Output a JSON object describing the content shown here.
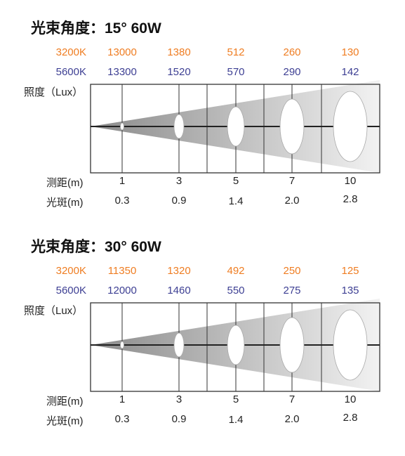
{
  "panels": [
    {
      "title": "光束角度：15°  60W",
      "row_labels": {
        "temp_a": "3200K",
        "temp_b": "5600K",
        "illuminance": "照度（Lux）",
        "distance": "测距(m)",
        "spot": "光斑(m)"
      },
      "colors": {
        "temp_a": "#ef7d22",
        "temp_b": "#3d3f93"
      },
      "columns": [
        {
          "lux_3200": "13000",
          "lux_5600": "13300",
          "distance": "1",
          "spot": "0.3"
        },
        {
          "lux_3200": "1380",
          "lux_5600": "1520",
          "distance": "3",
          "spot": "0.9"
        },
        {
          "lux_3200": "512",
          "lux_5600": "570",
          "distance": "5",
          "spot": "1.4"
        },
        {
          "lux_3200": "260",
          "lux_5600": "290",
          "distance": "7",
          "spot": "2.0"
        },
        {
          "lux_3200": "130",
          "lux_5600": "142",
          "distance": "10",
          "spot": "2.8"
        }
      ]
    },
    {
      "title": "光束角度：30°  60W",
      "row_labels": {
        "temp_a": "3200K",
        "temp_b": "5600K",
        "illuminance": "照度（Lux）",
        "distance": "测距(m)",
        "spot": "光斑(m)"
      },
      "colors": {
        "temp_a": "#ef7d22",
        "temp_b": "#3d3f93"
      },
      "columns": [
        {
          "lux_3200": "11350",
          "lux_5600": "12000",
          "distance": "1",
          "spot": "0.3"
        },
        {
          "lux_3200": "1320",
          "lux_5600": "1460",
          "distance": "3",
          "spot": "0.9"
        },
        {
          "lux_3200": "492",
          "lux_5600": "550",
          "distance": "5",
          "spot": "1.4"
        },
        {
          "lux_3200": "250",
          "lux_5600": "275",
          "distance": "7",
          "spot": "2.0"
        },
        {
          "lux_3200": "125",
          "lux_5600": "135",
          "distance": "10",
          "spot": "2.8"
        }
      ]
    }
  ]
}
